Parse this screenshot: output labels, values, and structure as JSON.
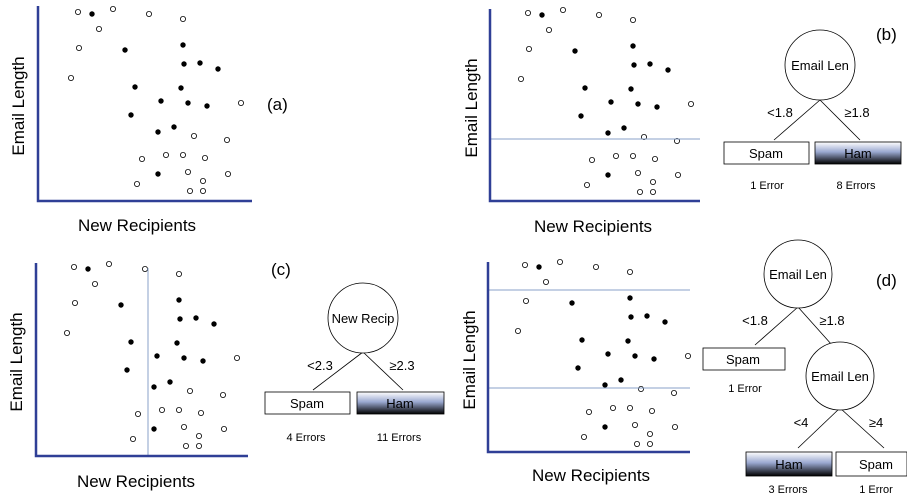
{
  "panels": [
    {
      "tag": "(a)",
      "ylabel": "Email Length",
      "xlabel": "New Recipients"
    },
    {
      "tag": "(b)",
      "ylabel": "Email Length",
      "xlabel": "New Recipients",
      "tree": {
        "root": "Email Len",
        "branches": [
          "<1.8",
          "≥1.8"
        ],
        "leaves": [
          {
            "label": "Spam",
            "errors": "1 Error"
          },
          {
            "label": "Ham",
            "errors": "8 Errors"
          }
        ]
      }
    },
    {
      "tag": "(c)",
      "ylabel": "Email Length",
      "xlabel": "New Recipients",
      "tree": {
        "root": "New Recip",
        "branches": [
          "<2.3",
          "≥2.3"
        ],
        "leaves": [
          {
            "label": "Spam",
            "errors": "4 Errors"
          },
          {
            "label": "Ham",
            "errors": "11 Errors"
          }
        ]
      }
    },
    {
      "tag": "(d)",
      "ylabel": "Email Length",
      "xlabel": "New Recipients",
      "tree": {
        "root": "Email Len",
        "branches": [
          "<1.8",
          "≥1.8"
        ],
        "leaf_top": {
          "label": "Spam",
          "errors": "1 Error"
        },
        "child": "Email Len",
        "child_branches": [
          "<4",
          "≥4"
        ],
        "leaves": [
          {
            "label": "Ham",
            "errors": "3 Errors"
          },
          {
            "label": "Spam",
            "errors": "1 Error"
          }
        ]
      }
    }
  ],
  "colors": {
    "axis": "#2f3f96",
    "split_line": "#8aa2c8",
    "ham_fill_top": "#ffffff",
    "ham_fill_mid": "#9aa8d0",
    "ham_fill_bottom": "#000000"
  }
}
